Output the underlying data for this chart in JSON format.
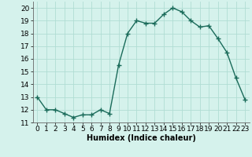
{
  "x": [
    0,
    1,
    2,
    3,
    4,
    5,
    6,
    7,
    8,
    9,
    10,
    11,
    12,
    13,
    14,
    15,
    16,
    17,
    18,
    19,
    20,
    21,
    22,
    23
  ],
  "y": [
    13,
    12,
    12,
    11.7,
    11.4,
    11.6,
    11.6,
    12,
    11.7,
    15.5,
    18,
    19,
    18.8,
    18.8,
    19.5,
    20,
    19.7,
    19,
    18.5,
    18.6,
    17.6,
    16.5,
    14.5,
    12.8
  ],
  "line_color": "#1a6b5a",
  "marker": "+",
  "bg_color": "#d5f2ec",
  "grid_color": "#b0ddd4",
  "xlabel": "Humidex (Indice chaleur)",
  "xlim": [
    -0.5,
    23.5
  ],
  "ylim": [
    11,
    20.5
  ],
  "yticks": [
    11,
    12,
    13,
    14,
    15,
    16,
    17,
    18,
    19,
    20
  ],
  "xticks": [
    0,
    1,
    2,
    3,
    4,
    5,
    6,
    7,
    8,
    9,
    10,
    11,
    12,
    13,
    14,
    15,
    16,
    17,
    18,
    19,
    20,
    21,
    22,
    23
  ],
  "xlabel_fontsize": 7,
  "tick_fontsize": 6.5,
  "linewidth": 1.0,
  "markersize": 4,
  "markeredgewidth": 1.0
}
